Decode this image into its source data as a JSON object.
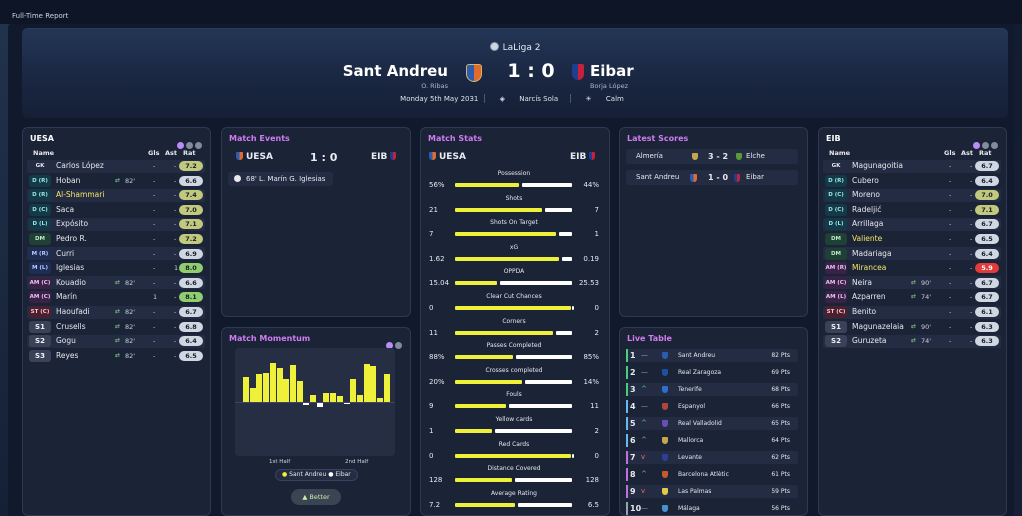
{
  "window": {
    "title": "Full-Time Report"
  },
  "match": {
    "league": "LaLiga 2",
    "home": {
      "name": "Sant Andreu",
      "manager": "O. Ribas"
    },
    "away": {
      "name": "Eibar",
      "manager": "Borja López"
    },
    "score": "1 : 0",
    "date": "Monday 5th May 2031",
    "referee": "Narcís Sola",
    "weather": "Calm"
  },
  "lineup_home": {
    "title": "UESA",
    "headers": {
      "name": "Name",
      "gls": "Gls",
      "ast": "Ast",
      "rat": "Rat"
    },
    "players": [
      {
        "pos": "GK",
        "name": "Carlos López",
        "sub": "",
        "gls": "-",
        "ast": "-",
        "rat": "7.2"
      },
      {
        "pos": "D (R)",
        "name": "Hoban",
        "sub": "82'",
        "gls": "-",
        "ast": "-",
        "rat": "6.6"
      },
      {
        "pos": "D (R)",
        "name": "Al-Shammari",
        "sub": "",
        "gls": "-",
        "ast": "-",
        "rat": "7.4"
      },
      {
        "pos": "D (C)",
        "name": "Saca",
        "sub": "",
        "gls": "-",
        "ast": "-",
        "rat": "7.0"
      },
      {
        "pos": "D (L)",
        "name": "Expósito",
        "sub": "",
        "gls": "-",
        "ast": "-",
        "rat": "7.1"
      },
      {
        "pos": "DM",
        "name": "Pedro R.",
        "sub": "",
        "gls": "-",
        "ast": "-",
        "rat": "7.2"
      },
      {
        "pos": "M (R)",
        "name": "Curri",
        "sub": "",
        "gls": "-",
        "ast": "-",
        "rat": "6.9"
      },
      {
        "pos": "M (L)",
        "name": "Iglesias",
        "sub": "",
        "gls": "-",
        "ast": "1",
        "rat": "8.0"
      },
      {
        "pos": "AM (C)",
        "name": "Kouadio",
        "sub": "82'",
        "gls": "-",
        "ast": "-",
        "rat": "6.6"
      },
      {
        "pos": "AM (C)",
        "name": "Marín",
        "sub": "",
        "gls": "1",
        "ast": "-",
        "rat": "8.1"
      },
      {
        "pos": "ST (C)",
        "name": "Haoufadi",
        "sub": "82'",
        "gls": "-",
        "ast": "-",
        "rat": "6.7"
      },
      {
        "pos": "S1",
        "name": "Crusells",
        "sub": "82'",
        "gls": "-",
        "ast": "-",
        "rat": "6.8"
      },
      {
        "pos": "S2",
        "name": "Gogu",
        "sub": "82'",
        "gls": "-",
        "ast": "-",
        "rat": "6.4"
      },
      {
        "pos": "S3",
        "name": "Reyes",
        "sub": "82'",
        "gls": "-",
        "ast": "-",
        "rat": "6.5"
      }
    ]
  },
  "lineup_away": {
    "title": "EIB",
    "headers": {
      "name": "Name",
      "gls": "Gls",
      "ast": "Ast",
      "rat": "Rat"
    },
    "players": [
      {
        "pos": "GK",
        "name": "Magunagoitia",
        "sub": "",
        "gls": "-",
        "ast": "-",
        "rat": "6.7"
      },
      {
        "pos": "D (R)",
        "name": "Cubero",
        "sub": "",
        "gls": "-",
        "ast": "-",
        "rat": "6.4"
      },
      {
        "pos": "D (C)",
        "name": "Moreno",
        "sub": "",
        "gls": "-",
        "ast": "-",
        "rat": "7.0"
      },
      {
        "pos": "D (C)",
        "name": "Radeljić",
        "sub": "",
        "gls": "-",
        "ast": "-",
        "rat": "7.1"
      },
      {
        "pos": "D (L)",
        "name": "Arrillaga",
        "sub": "",
        "gls": "-",
        "ast": "-",
        "rat": "6.7"
      },
      {
        "pos": "DM",
        "name": "Valiente",
        "sub": "",
        "gls": "-",
        "ast": "-",
        "rat": "6.5"
      },
      {
        "pos": "DM",
        "name": "Madariaga",
        "sub": "",
        "gls": "-",
        "ast": "-",
        "rat": "6.4"
      },
      {
        "pos": "AM (R)",
        "name": "Mirancea",
        "sub": "",
        "gls": "-",
        "ast": "-",
        "rat": "5.9"
      },
      {
        "pos": "AM (C)",
        "name": "Neira",
        "sub": "90'",
        "gls": "-",
        "ast": "-",
        "rat": "6.7"
      },
      {
        "pos": "AM (L)",
        "name": "Azparren",
        "sub": "74'",
        "gls": "-",
        "ast": "-",
        "rat": "6.7"
      },
      {
        "pos": "ST (C)",
        "name": "Benito",
        "sub": "",
        "gls": "-",
        "ast": "-",
        "rat": "6.1"
      },
      {
        "pos": "S1",
        "name": "Magunazelaia",
        "sub": "90'",
        "gls": "-",
        "ast": "-",
        "rat": "6.3"
      },
      {
        "pos": "S2",
        "name": "Guruzeta",
        "sub": "74'",
        "gls": "-",
        "ast": "-",
        "rat": "6.3"
      }
    ]
  },
  "events": {
    "title": "Match Events",
    "home": "UESA",
    "away": "EIB",
    "score": "1 : 0",
    "items": [
      {
        "text": "68' L. Marín G. Iglesias"
      }
    ]
  },
  "momentum": {
    "title": "Match Momentum",
    "first_half": "1st Half",
    "second_half": "2nd Half",
    "legend_home": "Sant Andreu",
    "legend_away": "Eibar",
    "button": "Better",
    "values": [
      0.55,
      0.3,
      0.6,
      0.62,
      0.85,
      0.75,
      0.5,
      0.8,
      0.45,
      -0.05,
      0.15,
      -0.08,
      0.2,
      0.2,
      0.12,
      -0.02,
      0.5,
      0.15,
      0.82,
      0.78,
      0.08,
      0.6
    ]
  },
  "stats": {
    "title": "Match Stats",
    "home": "UESA",
    "away": "EIB",
    "items": [
      {
        "label": "Possession",
        "home": "56%",
        "away": "44%",
        "h": 56,
        "a": 44
      },
      {
        "label": "Shots",
        "home": "21",
        "away": "7",
        "h": 21,
        "a": 7
      },
      {
        "label": "Shots On Target",
        "home": "7",
        "away": "1",
        "h": 7,
        "a": 1
      },
      {
        "label": "xG",
        "home": "1.62",
        "away": "0.19",
        "h": 1.62,
        "a": 0.19
      },
      {
        "label": "OPPDA",
        "home": "15.04",
        "away": "25.53",
        "h": 15.04,
        "a": 25.53
      },
      {
        "label": "Clear Cut Chances",
        "home": "0",
        "away": "0",
        "h": 0.05,
        "a": 0
      },
      {
        "label": "Corners",
        "home": "11",
        "away": "2",
        "h": 11,
        "a": 2
      },
      {
        "label": "Passes Completed",
        "home": "88%",
        "away": "85%",
        "h": 88,
        "a": 85
      },
      {
        "label": "Crosses completed",
        "home": "20%",
        "away": "14%",
        "h": 20,
        "a": 14
      },
      {
        "label": "Fouls",
        "home": "9",
        "away": "11",
        "h": 9,
        "a": 11
      },
      {
        "label": "Yellow cards",
        "home": "1",
        "away": "2",
        "h": 1,
        "a": 2
      },
      {
        "label": "Red Cards",
        "home": "0",
        "away": "0",
        "h": 0.05,
        "a": 0
      },
      {
        "label": "Distance Covered",
        "home": "128",
        "away": "128",
        "h": 128,
        "a": 128
      },
      {
        "label": "Average Rating",
        "home": "7.2",
        "away": "6.5",
        "h": 7.2,
        "a": 6.5
      }
    ]
  },
  "latest_scores": {
    "title": "Latest Scores",
    "items": [
      {
        "home": "Almería",
        "score": "3 - 2",
        "away": "Elche"
      },
      {
        "home": "Sant Andreu",
        "score": "1 - 0",
        "away": "Eibar"
      }
    ]
  },
  "live_table": {
    "title": "Live Table",
    "rows": [
      {
        "pos": "1",
        "trend": "—",
        "team": "Sant Andreu",
        "pts": "82 Pts"
      },
      {
        "pos": "2",
        "trend": "—",
        "team": "Real Zaragoza",
        "pts": "69 Pts"
      },
      {
        "pos": "3",
        "trend": "^",
        "team": "Tenerife",
        "pts": "68 Pts"
      },
      {
        "pos": "4",
        "trend": "—",
        "team": "Espanyol",
        "pts": "66 Pts"
      },
      {
        "pos": "5",
        "trend": "^",
        "team": "Real Valladolid",
        "pts": "65 Pts"
      },
      {
        "pos": "6",
        "trend": "^",
        "team": "Mallorca",
        "pts": "64 Pts"
      },
      {
        "pos": "7",
        "trend": "v",
        "team": "Levante",
        "pts": "62 Pts"
      },
      {
        "pos": "8",
        "trend": "^",
        "team": "Barcelona Atlètic",
        "pts": "61 Pts"
      },
      {
        "pos": "9",
        "trend": "v",
        "team": "Las Palmas",
        "pts": "59 Pts"
      },
      {
        "pos": "10",
        "trend": "—",
        "team": "Málaga",
        "pts": "56 Pts"
      }
    ]
  },
  "colors": {
    "home_bar": "#eef03a",
    "away_bar": "#ffffff",
    "accent": "#d07cf2"
  }
}
